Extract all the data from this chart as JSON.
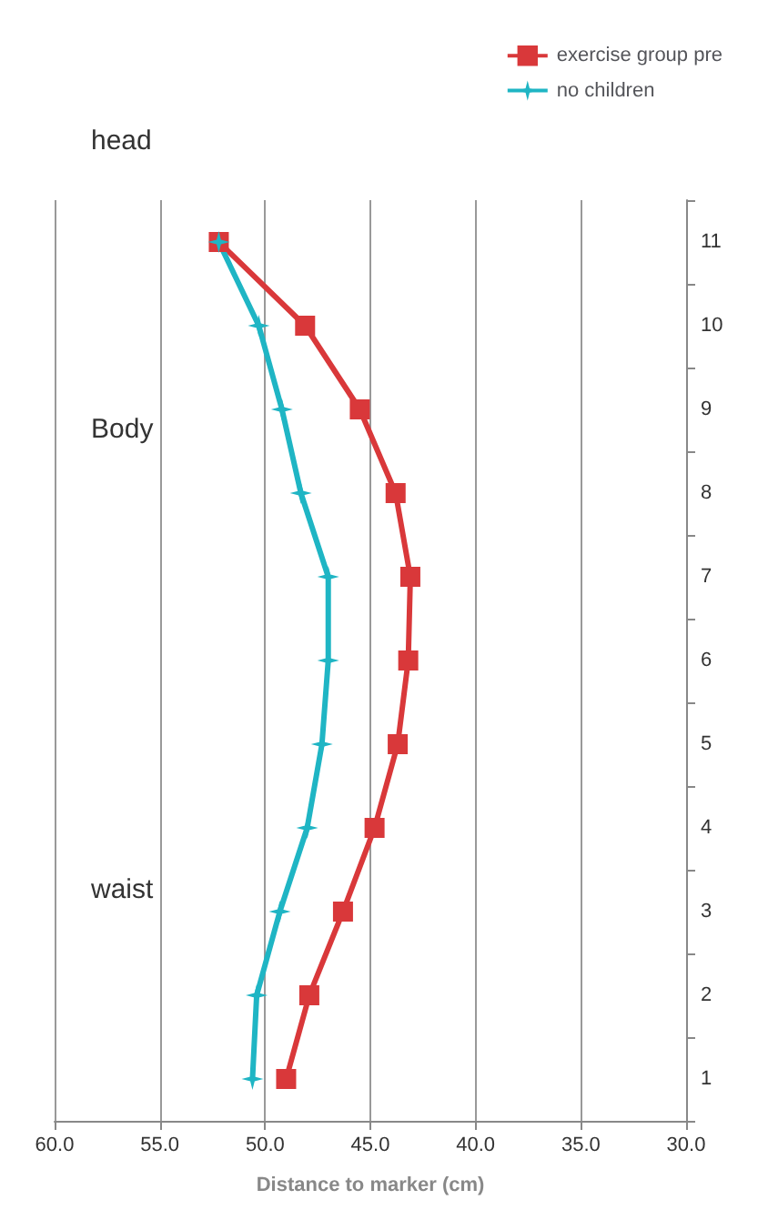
{
  "chart_data": {
    "type": "line",
    "orientation": "horizontal",
    "xlabel": "Distance to marker (cm)",
    "categories": [
      "11",
      "10",
      "9",
      "8",
      "7",
      "6",
      "5",
      "4",
      "3",
      "2",
      "1"
    ],
    "series": [
      {
        "name": "exercise group pre",
        "color": "#d9383a",
        "marker": "square",
        "values": [
          52.2,
          48.1,
          45.5,
          43.8,
          43.1,
          43.2,
          43.7,
          44.8,
          46.3,
          47.9,
          49.0
        ]
      },
      {
        "name": "no children",
        "color": "#1fb5c4",
        "marker": "star",
        "values": [
          52.2,
          50.3,
          49.2,
          48.3,
          47.0,
          47.0,
          47.3,
          48.0,
          49.3,
          50.4,
          50.6
        ]
      }
    ],
    "xlim": [
      60,
      30
    ],
    "xticks": [
      {
        "value": 60,
        "label": "60.0"
      },
      {
        "value": 55,
        "label": "55.0"
      },
      {
        "value": 50,
        "label": "50.0"
      },
      {
        "value": 45,
        "label": "45.0"
      },
      {
        "value": 40,
        "label": "40.0"
      },
      {
        "value": 35,
        "label": "35.0"
      },
      {
        "value": 30,
        "label": "30.0"
      }
    ],
    "grid": "x",
    "legend": "top right",
    "annotations": [
      "head",
      "Body",
      "waist"
    ]
  }
}
